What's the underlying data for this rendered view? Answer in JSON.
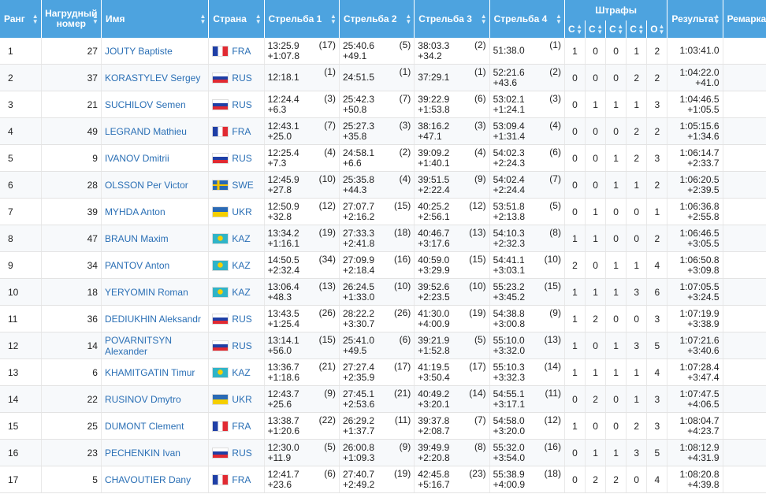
{
  "headers": {
    "rank": "Ранг",
    "bib": "Нагрудный номер",
    "name": "Имя",
    "country": "Страна",
    "shooting1": "Стрельба 1",
    "shooting2": "Стрельба 2",
    "shooting3": "Стрельба 3",
    "shooting4": "Стрельба 4",
    "penalties": "Штрафы",
    "penalty_cols": [
      "С",
      "С",
      "С",
      "С",
      "О"
    ],
    "result": "Результат",
    "remark": "Ремарка"
  },
  "flag_colors": {
    "FRA": [
      "#1f3fa6",
      "#ffffff",
      "#e12a32"
    ],
    "RUS": [
      "#ffffff",
      "#1f3fa6",
      "#e12a32"
    ],
    "SWE": [
      "#2a6ab5",
      "#f5c400"
    ],
    "UKR": [
      "#2a6ab5",
      "#f5cf00"
    ],
    "KAZ": [
      "#2fb4c8",
      "#f5cf00"
    ]
  },
  "rows": [
    {
      "rank": "1",
      "bib": "27",
      "name": "JOUTY Baptiste",
      "country": "FRA",
      "s1": {
        "time": "13:25.9",
        "diff": "+1:07.8",
        "pos": "(17)"
      },
      "s2": {
        "time": "25:40.6",
        "diff": "+49.1",
        "pos": "(5)"
      },
      "s3": {
        "time": "38:03.3",
        "diff": "+34.2",
        "pos": "(2)"
      },
      "s4": {
        "time": "51:38.0",
        "diff": "",
        "pos": "(1)"
      },
      "pen": [
        "1",
        "0",
        "0",
        "1",
        "2"
      ],
      "result": "1:03:41.0",
      "result_diff": ""
    },
    {
      "rank": "2",
      "bib": "37",
      "name": "KORASTYLEV Sergey",
      "country": "RUS",
      "s1": {
        "time": "12:18.1",
        "diff": "",
        "pos": "(1)"
      },
      "s2": {
        "time": "24:51.5",
        "diff": "",
        "pos": "(1)"
      },
      "s3": {
        "time": "37:29.1",
        "diff": "",
        "pos": "(1)"
      },
      "s4": {
        "time": "52:21.6",
        "diff": "+43.6",
        "pos": "(2)"
      },
      "pen": [
        "0",
        "0",
        "0",
        "2",
        "2"
      ],
      "result": "1:04:22.0",
      "result_diff": "+41.0"
    },
    {
      "rank": "3",
      "bib": "21",
      "name": "SUCHILOV Semen",
      "country": "RUS",
      "s1": {
        "time": "12:24.4",
        "diff": "+6.3",
        "pos": "(3)"
      },
      "s2": {
        "time": "25:42.3",
        "diff": "+50.8",
        "pos": "(7)"
      },
      "s3": {
        "time": "39:22.9",
        "diff": "+1:53.8",
        "pos": "(6)"
      },
      "s4": {
        "time": "53:02.1",
        "diff": "+1:24.1",
        "pos": "(3)"
      },
      "pen": [
        "0",
        "1",
        "1",
        "1",
        "3"
      ],
      "result": "1:04:46.5",
      "result_diff": "+1:05.5"
    },
    {
      "rank": "4",
      "bib": "49",
      "name": "LEGRAND Mathieu",
      "country": "FRA",
      "s1": {
        "time": "12:43.1",
        "diff": "+25.0",
        "pos": "(7)"
      },
      "s2": {
        "time": "25:27.3",
        "diff": "+35.8",
        "pos": "(3)"
      },
      "s3": {
        "time": "38:16.2",
        "diff": "+47.1",
        "pos": "(3)"
      },
      "s4": {
        "time": "53:09.4",
        "diff": "+1:31.4",
        "pos": "(4)"
      },
      "pen": [
        "0",
        "0",
        "0",
        "2",
        "2"
      ],
      "result": "1:05:15.6",
      "result_diff": "+1:34.6"
    },
    {
      "rank": "5",
      "bib": "9",
      "name": "IVANOV Dmitrii",
      "country": "RUS",
      "s1": {
        "time": "12:25.4",
        "diff": "+7.3",
        "pos": "(4)"
      },
      "s2": {
        "time": "24:58.1",
        "diff": "+6.6",
        "pos": "(2)"
      },
      "s3": {
        "time": "39:09.2",
        "diff": "+1:40.1",
        "pos": "(4)"
      },
      "s4": {
        "time": "54:02.3",
        "diff": "+2:24.3",
        "pos": "(6)"
      },
      "pen": [
        "0",
        "0",
        "1",
        "2",
        "3"
      ],
      "result": "1:06:14.7",
      "result_diff": "+2:33.7"
    },
    {
      "rank": "6",
      "bib": "28",
      "name": "OLSSON Per Victor",
      "country": "SWE",
      "s1": {
        "time": "12:45.9",
        "diff": "+27.8",
        "pos": "(10)"
      },
      "s2": {
        "time": "25:35.8",
        "diff": "+44.3",
        "pos": "(4)"
      },
      "s3": {
        "time": "39:51.5",
        "diff": "+2:22.4",
        "pos": "(9)"
      },
      "s4": {
        "time": "54:02.4",
        "diff": "+2:24.4",
        "pos": "(7)"
      },
      "pen": [
        "0",
        "0",
        "1",
        "1",
        "2"
      ],
      "result": "1:06:20.5",
      "result_diff": "+2:39.5"
    },
    {
      "rank": "7",
      "bib": "39",
      "name": "MYHDA Anton",
      "country": "UKR",
      "s1": {
        "time": "12:50.9",
        "diff": "+32.8",
        "pos": "(12)"
      },
      "s2": {
        "time": "27:07.7",
        "diff": "+2:16.2",
        "pos": "(15)"
      },
      "s3": {
        "time": "40:25.2",
        "diff": "+2:56.1",
        "pos": "(12)"
      },
      "s4": {
        "time": "53:51.8",
        "diff": "+2:13.8",
        "pos": "(5)"
      },
      "pen": [
        "0",
        "1",
        "0",
        "0",
        "1"
      ],
      "result": "1:06:36.8",
      "result_diff": "+2:55.8"
    },
    {
      "rank": "8",
      "bib": "47",
      "name": "BRAUN Maxim",
      "country": "KAZ",
      "s1": {
        "time": "13:34.2",
        "diff": "+1:16.1",
        "pos": "(19)"
      },
      "s2": {
        "time": "27:33.3",
        "diff": "+2:41.8",
        "pos": "(18)"
      },
      "s3": {
        "time": "40:46.7",
        "diff": "+3:17.6",
        "pos": "(13)"
      },
      "s4": {
        "time": "54:10.3",
        "diff": "+2:32.3",
        "pos": "(8)"
      },
      "pen": [
        "1",
        "1",
        "0",
        "0",
        "2"
      ],
      "result": "1:06:46.5",
      "result_diff": "+3:05.5"
    },
    {
      "rank": "9",
      "bib": "34",
      "name": "PANTOV Anton",
      "country": "KAZ",
      "s1": {
        "time": "14:50.5",
        "diff": "+2:32.4",
        "pos": "(34)"
      },
      "s2": {
        "time": "27:09.9",
        "diff": "+2:18.4",
        "pos": "(16)"
      },
      "s3": {
        "time": "40:59.0",
        "diff": "+3:29.9",
        "pos": "(15)"
      },
      "s4": {
        "time": "54:41.1",
        "diff": "+3:03.1",
        "pos": "(10)"
      },
      "pen": [
        "2",
        "0",
        "1",
        "1",
        "4"
      ],
      "result": "1:06:50.8",
      "result_diff": "+3:09.8"
    },
    {
      "rank": "10",
      "bib": "18",
      "name": "YERYOMIN Roman",
      "country": "KAZ",
      "s1": {
        "time": "13:06.4",
        "diff": "+48.3",
        "pos": "(13)"
      },
      "s2": {
        "time": "26:24.5",
        "diff": "+1:33.0",
        "pos": "(10)"
      },
      "s3": {
        "time": "39:52.6",
        "diff": "+2:23.5",
        "pos": "(10)"
      },
      "s4": {
        "time": "55:23.2",
        "diff": "+3:45.2",
        "pos": "(15)"
      },
      "pen": [
        "1",
        "1",
        "1",
        "3",
        "6"
      ],
      "result": "1:07:05.5",
      "result_diff": "+3:24.5"
    },
    {
      "rank": "11",
      "bib": "36",
      "name": "DEDIUKHIN Aleksandr",
      "country": "RUS",
      "s1": {
        "time": "13:43.5",
        "diff": "+1:25.4",
        "pos": "(26)"
      },
      "s2": {
        "time": "28:22.2",
        "diff": "+3:30.7",
        "pos": "(26)"
      },
      "s3": {
        "time": "41:30.0",
        "diff": "+4:00.9",
        "pos": "(19)"
      },
      "s4": {
        "time": "54:38.8",
        "diff": "+3:00.8",
        "pos": "(9)"
      },
      "pen": [
        "1",
        "2",
        "0",
        "0",
        "3"
      ],
      "result": "1:07:19.9",
      "result_diff": "+3:38.9"
    },
    {
      "rank": "12",
      "bib": "14",
      "name": "POVARNITSYN Alexander",
      "country": "RUS",
      "s1": {
        "time": "13:14.1",
        "diff": "+56.0",
        "pos": "(15)"
      },
      "s2": {
        "time": "25:41.0",
        "diff": "+49.5",
        "pos": "(6)"
      },
      "s3": {
        "time": "39:21.9",
        "diff": "+1:52.8",
        "pos": "(5)"
      },
      "s4": {
        "time": "55:10.0",
        "diff": "+3:32.0",
        "pos": "(13)"
      },
      "pen": [
        "1",
        "0",
        "1",
        "3",
        "5"
      ],
      "result": "1:07:21.6",
      "result_diff": "+3:40.6"
    },
    {
      "rank": "13",
      "bib": "6",
      "name": "KHAMITGATIN Timur",
      "country": "KAZ",
      "s1": {
        "time": "13:36.7",
        "diff": "+1:18.6",
        "pos": "(21)"
      },
      "s2": {
        "time": "27:27.4",
        "diff": "+2:35.9",
        "pos": "(17)"
      },
      "s3": {
        "time": "41:19.5",
        "diff": "+3:50.4",
        "pos": "(17)"
      },
      "s4": {
        "time": "55:10.3",
        "diff": "+3:32.3",
        "pos": "(14)"
      },
      "pen": [
        "1",
        "1",
        "1",
        "1",
        "4"
      ],
      "result": "1:07:28.4",
      "result_diff": "+3:47.4"
    },
    {
      "rank": "14",
      "bib": "22",
      "name": "RUSINOV Dmytro",
      "country": "UKR",
      "s1": {
        "time": "12:43.7",
        "diff": "+25.6",
        "pos": "(9)"
      },
      "s2": {
        "time": "27:45.1",
        "diff": "+2:53.6",
        "pos": "(21)"
      },
      "s3": {
        "time": "40:49.2",
        "diff": "+3:20.1",
        "pos": "(14)"
      },
      "s4": {
        "time": "54:55.1",
        "diff": "+3:17.1",
        "pos": "(11)"
      },
      "pen": [
        "0",
        "2",
        "0",
        "1",
        "3"
      ],
      "result": "1:07:47.5",
      "result_diff": "+4:06.5"
    },
    {
      "rank": "15",
      "bib": "25",
      "name": "DUMONT Clement",
      "country": "FRA",
      "s1": {
        "time": "13:38.7",
        "diff": "+1:20.6",
        "pos": "(22)"
      },
      "s2": {
        "time": "26:29.2",
        "diff": "+1:37.7",
        "pos": "(11)"
      },
      "s3": {
        "time": "39:37.8",
        "diff": "+2:08.7",
        "pos": "(7)"
      },
      "s4": {
        "time": "54:58.0",
        "diff": "+3:20.0",
        "pos": "(12)"
      },
      "pen": [
        "1",
        "0",
        "0",
        "2",
        "3"
      ],
      "result": "1:08:04.7",
      "result_diff": "+4:23.7"
    },
    {
      "rank": "16",
      "bib": "23",
      "name": "PECHENKIN Ivan",
      "country": "RUS",
      "s1": {
        "time": "12:30.0",
        "diff": "+11.9",
        "pos": "(5)"
      },
      "s2": {
        "time": "26:00.8",
        "diff": "+1:09.3",
        "pos": "(9)"
      },
      "s3": {
        "time": "39:49.9",
        "diff": "+2:20.8",
        "pos": "(8)"
      },
      "s4": {
        "time": "55:32.0",
        "diff": "+3:54.0",
        "pos": "(16)"
      },
      "pen": [
        "0",
        "1",
        "1",
        "3",
        "5"
      ],
      "result": "1:08:12.9",
      "result_diff": "+4:31.9"
    },
    {
      "rank": "17",
      "bib": "5",
      "name": "CHAVOUTIER Dany",
      "country": "FRA",
      "s1": {
        "time": "12:41.7",
        "diff": "+23.6",
        "pos": "(6)"
      },
      "s2": {
        "time": "27:40.7",
        "diff": "+2:49.2",
        "pos": "(19)"
      },
      "s3": {
        "time": "42:45.8",
        "diff": "+5:16.7",
        "pos": "(23)"
      },
      "s4": {
        "time": "55:38.9",
        "diff": "+4:00.9",
        "pos": "(18)"
      },
      "pen": [
        "0",
        "2",
        "2",
        "0",
        "4"
      ],
      "result": "1:08:20.8",
      "result_diff": "+4:39.8"
    }
  ]
}
